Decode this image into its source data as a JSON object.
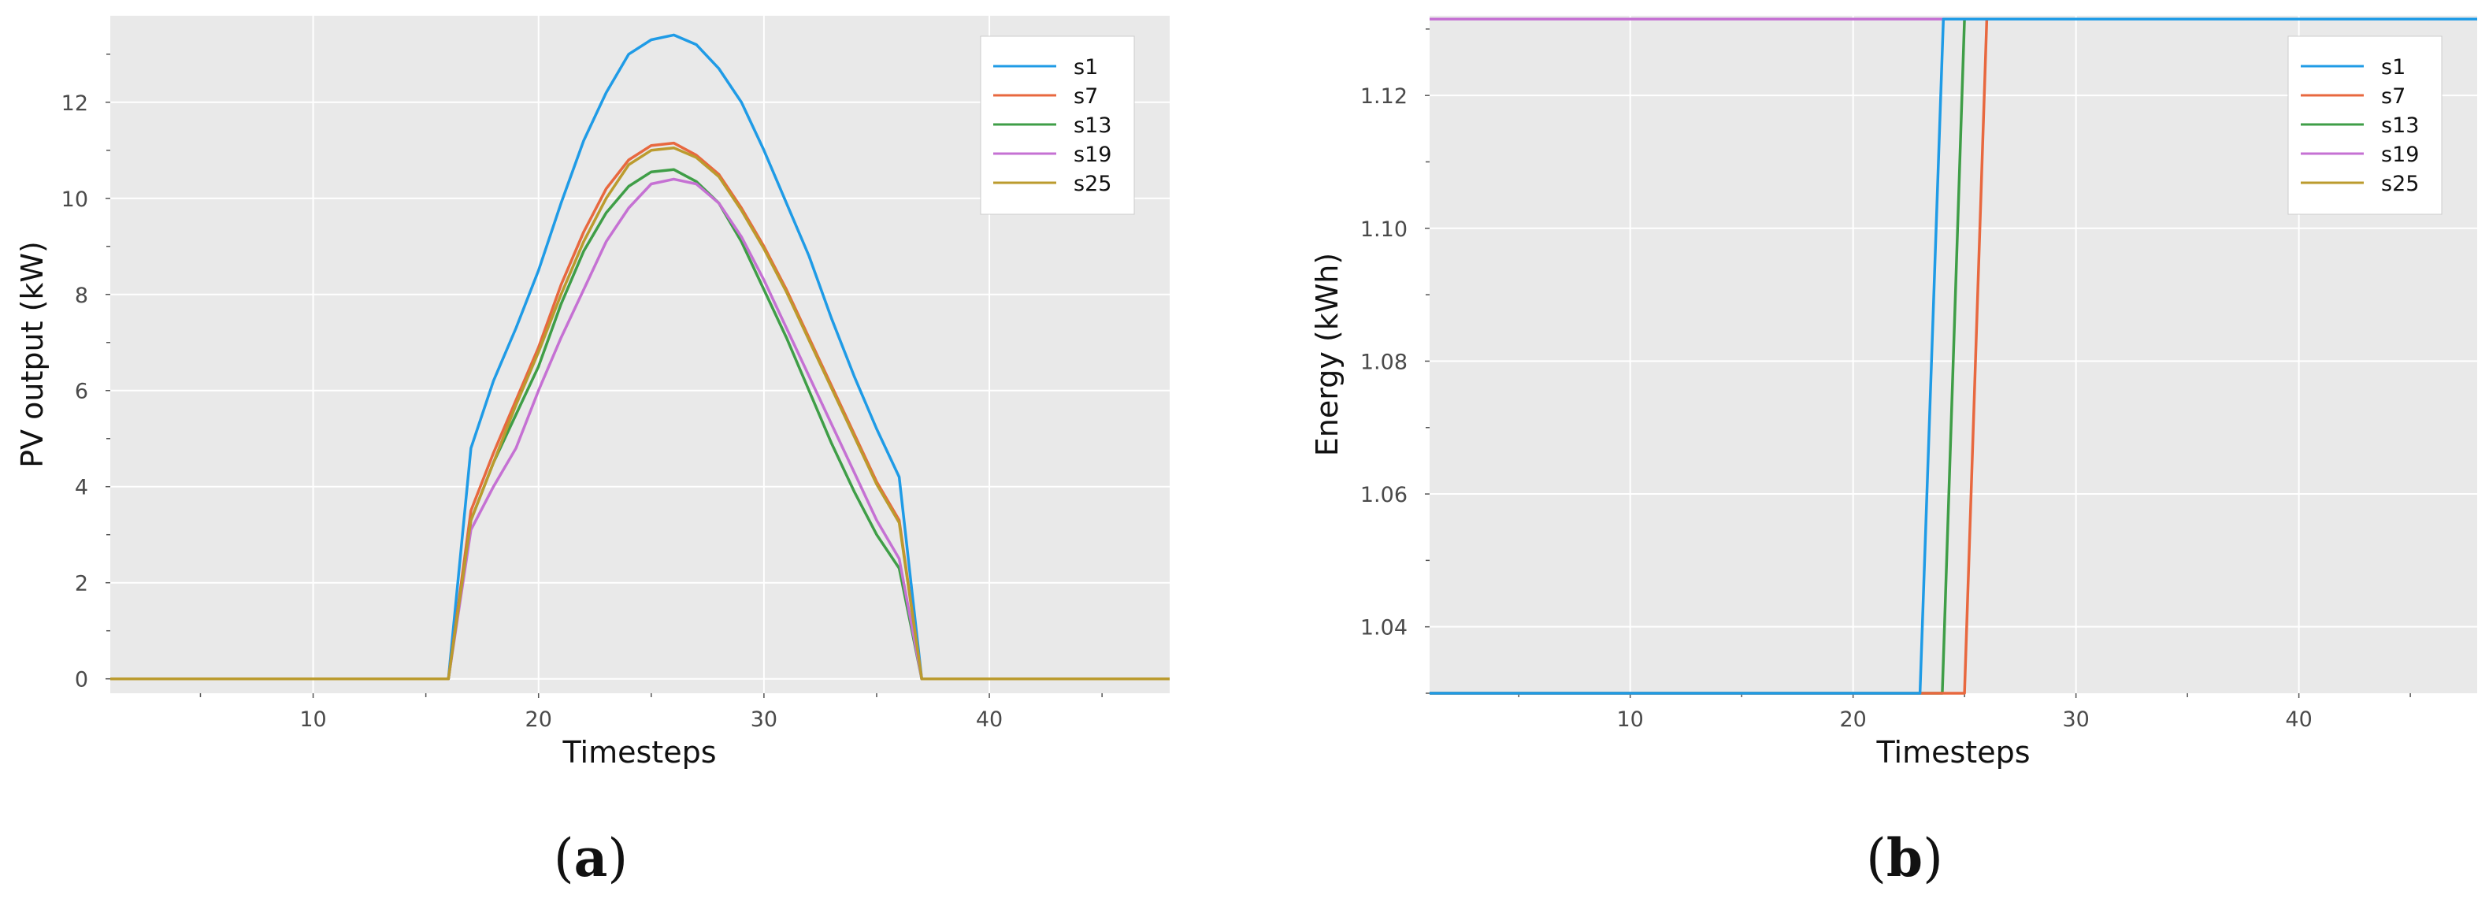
{
  "chart_data": [
    {
      "type": "line",
      "panel_label": {
        "open": "(",
        "letter": "a",
        "close": ")"
      },
      "xlabel": "Timesteps",
      "ylabel": "PV output (kW)",
      "xlim": [
        1,
        48
      ],
      "ylim": [
        -0.3,
        13.8
      ],
      "xticks": [
        10,
        20,
        30,
        40
      ],
      "xminor": [
        5,
        15,
        25,
        35,
        45
      ],
      "yticks": [
        0,
        2,
        4,
        6,
        8,
        10,
        12
      ],
      "yminor": [
        1,
        3,
        5,
        7,
        9,
        11,
        13
      ],
      "grid": true,
      "legend_position": "top-right",
      "x": [
        1,
        2,
        3,
        4,
        5,
        6,
        7,
        8,
        9,
        10,
        11,
        12,
        13,
        14,
        15,
        16,
        17,
        18,
        19,
        20,
        21,
        22,
        23,
        24,
        25,
        26,
        27,
        28,
        29,
        30,
        31,
        32,
        33,
        34,
        35,
        36,
        37,
        38,
        39,
        40,
        41,
        42,
        43,
        44,
        45,
        46,
        47,
        48
      ],
      "series": [
        {
          "name": "s1",
          "color": "#1f9be6",
          "values": [
            0,
            0,
            0,
            0,
            0,
            0,
            0,
            0,
            0,
            0,
            0,
            0,
            0,
            0,
            0,
            0,
            4.8,
            6.2,
            7.3,
            8.5,
            9.9,
            11.2,
            12.2,
            13.0,
            13.3,
            13.4,
            13.2,
            12.7,
            12.0,
            11.0,
            9.9,
            8.8,
            7.5,
            6.3,
            5.2,
            4.2,
            0,
            0,
            0,
            0,
            0,
            0,
            0,
            0,
            0,
            0,
            0,
            0
          ]
        },
        {
          "name": "s7",
          "color": "#e8683f",
          "values": [
            0,
            0,
            0,
            0,
            0,
            0,
            0,
            0,
            0,
            0,
            0,
            0,
            0,
            0,
            0,
            0,
            3.5,
            4.7,
            5.8,
            6.9,
            8.2,
            9.3,
            10.2,
            10.8,
            11.1,
            11.15,
            10.9,
            10.5,
            9.8,
            9.0,
            8.1,
            7.1,
            6.1,
            5.1,
            4.1,
            3.3,
            0,
            0,
            0,
            0,
            0,
            0,
            0,
            0,
            0,
            0,
            0,
            0
          ]
        },
        {
          "name": "s13",
          "color": "#3f9e47",
          "values": [
            0,
            0,
            0,
            0,
            0,
            0,
            0,
            0,
            0,
            0,
            0,
            0,
            0,
            0,
            0,
            0,
            3.3,
            4.5,
            5.5,
            6.5,
            7.8,
            8.9,
            9.7,
            10.25,
            10.55,
            10.6,
            10.35,
            9.9,
            9.1,
            8.1,
            7.1,
            6.0,
            4.9,
            3.9,
            3.0,
            2.3,
            0,
            0,
            0,
            0,
            0,
            0,
            0,
            0,
            0,
            0,
            0,
            0
          ]
        },
        {
          "name": "s19",
          "color": "#c571d3",
          "values": [
            0,
            0,
            0,
            0,
            0,
            0,
            0,
            0,
            0,
            0,
            0,
            0,
            0,
            0,
            0,
            0,
            3.1,
            4.0,
            4.8,
            6.0,
            7.1,
            8.1,
            9.1,
            9.8,
            10.3,
            10.4,
            10.3,
            9.9,
            9.2,
            8.3,
            7.3,
            6.3,
            5.3,
            4.3,
            3.3,
            2.5,
            0,
            0,
            0,
            0,
            0,
            0,
            0,
            0,
            0,
            0,
            0,
            0
          ]
        },
        {
          "name": "s25",
          "color": "#bb9b2e",
          "values": [
            0,
            0,
            0,
            0,
            0,
            0,
            0,
            0,
            0,
            0,
            0,
            0,
            0,
            0,
            0,
            0,
            3.3,
            4.5,
            5.7,
            6.8,
            8.0,
            9.1,
            10.0,
            10.7,
            11.0,
            11.05,
            10.85,
            10.45,
            9.75,
            8.95,
            8.05,
            7.05,
            6.05,
            5.05,
            4.05,
            3.25,
            0,
            0,
            0,
            0,
            0,
            0,
            0,
            0,
            0,
            0,
            0,
            0
          ]
        }
      ]
    },
    {
      "type": "line",
      "panel_label": {
        "open": "(",
        "letter": "b",
        "close": ")"
      },
      "xlabel": "Timesteps",
      "ylabel": "Energy (kWh)",
      "xlim": [
        1,
        48
      ],
      "ylim": [
        1.03,
        1.132
      ],
      "xticks": [
        10,
        20,
        30,
        40
      ],
      "xminor": [
        5,
        15,
        25,
        35,
        45
      ],
      "yticks": [
        1.04,
        1.06,
        1.08,
        1.1,
        1.12
      ],
      "ytick_labels": [
        "1.04",
        "1.06",
        "1.08",
        "1.10",
        "1.12"
      ],
      "yminor": [
        1.03,
        1.05,
        1.07,
        1.09,
        1.11,
        1.13
      ],
      "grid": true,
      "legend_position": "top-right",
      "draw_order": [
        "s25",
        "s19",
        "s13",
        "s7",
        "s1"
      ],
      "series": [
        {
          "name": "s1",
          "color": "#1f9be6",
          "x": [
            1,
            23,
            24.05,
            48
          ],
          "values": [
            1.03,
            1.03,
            1.1315,
            1.1315
          ]
        },
        {
          "name": "s7",
          "color": "#e8683f",
          "x": [
            1,
            25,
            26,
            48
          ],
          "values": [
            1.03,
            1.03,
            1.1315,
            1.1315
          ]
        },
        {
          "name": "s13",
          "color": "#3f9e47",
          "x": [
            1,
            24,
            25,
            48
          ],
          "values": [
            1.03,
            1.03,
            1.1315,
            1.1315
          ]
        },
        {
          "name": "s19",
          "color": "#c571d3",
          "x": [
            1,
            48
          ],
          "values": [
            1.1315,
            1.1315
          ]
        },
        {
          "name": "s25",
          "color": "#bb9b2e",
          "x": [
            1,
            48
          ],
          "values": [
            1.1315,
            1.1315
          ]
        }
      ]
    }
  ]
}
